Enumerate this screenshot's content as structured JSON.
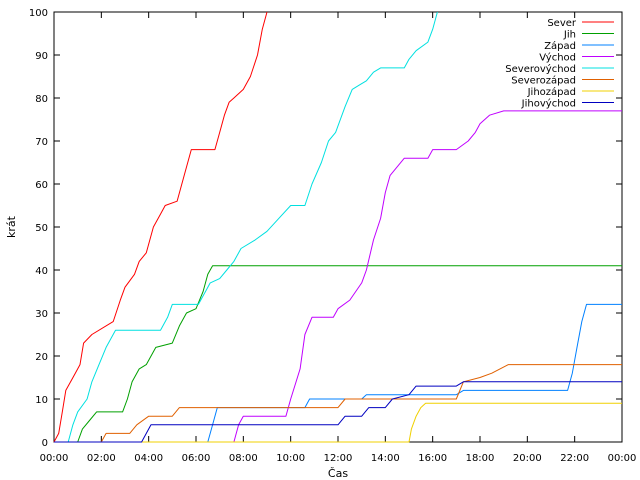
{
  "chart_data": {
    "type": "line",
    "title": "",
    "xlabel": "Čas",
    "ylabel": "krát",
    "x_ticks": [
      "00:00",
      "02:00",
      "04:00",
      "06:00",
      "08:00",
      "10:00",
      "12:00",
      "14:00",
      "16:00",
      "18:00",
      "20:00",
      "22:00",
      "00:00"
    ],
    "x_range_hours": [
      0,
      24
    ],
    "ylim": [
      0,
      100
    ],
    "y_ticks": [
      0,
      10,
      20,
      30,
      40,
      50,
      60,
      70,
      80,
      90,
      100
    ],
    "grid": false,
    "legend_position": "top-right",
    "series": [
      {
        "name": "Sever",
        "color": "#ff0000",
        "points": [
          [
            0.0,
            0
          ],
          [
            0.2,
            2
          ],
          [
            0.35,
            7
          ],
          [
            0.5,
            12
          ],
          [
            0.7,
            14
          ],
          [
            0.9,
            16
          ],
          [
            1.1,
            18
          ],
          [
            1.25,
            23
          ],
          [
            1.6,
            25
          ],
          [
            2.5,
            28
          ],
          [
            2.8,
            33
          ],
          [
            3.0,
            36
          ],
          [
            3.4,
            39
          ],
          [
            3.6,
            42
          ],
          [
            3.9,
            44
          ],
          [
            4.2,
            50
          ],
          [
            4.5,
            53
          ],
          [
            4.7,
            55
          ],
          [
            5.2,
            56
          ],
          [
            5.5,
            62
          ],
          [
            5.8,
            68
          ],
          [
            6.8,
            68
          ],
          [
            7.0,
            72
          ],
          [
            7.2,
            76
          ],
          [
            7.4,
            79
          ],
          [
            7.6,
            80
          ],
          [
            8.0,
            82
          ],
          [
            8.3,
            85
          ],
          [
            8.6,
            90
          ],
          [
            8.8,
            96
          ],
          [
            9.0,
            100
          ]
        ]
      },
      {
        "name": "Jih",
        "color": "#00a000",
        "points": [
          [
            0.0,
            0
          ],
          [
            1.0,
            0
          ],
          [
            1.2,
            3
          ],
          [
            1.5,
            5
          ],
          [
            1.8,
            7
          ],
          [
            2.9,
            7
          ],
          [
            3.1,
            10
          ],
          [
            3.3,
            14
          ],
          [
            3.6,
            17
          ],
          [
            3.9,
            18
          ],
          [
            4.3,
            22
          ],
          [
            5.0,
            23
          ],
          [
            5.3,
            27
          ],
          [
            5.6,
            30
          ],
          [
            6.0,
            31
          ],
          [
            6.3,
            35
          ],
          [
            6.5,
            39
          ],
          [
            6.7,
            41
          ],
          [
            24.0,
            41
          ]
        ]
      },
      {
        "name": "Západ",
        "color": "#0080ff",
        "points": [
          [
            0.0,
            0
          ],
          [
            6.5,
            0
          ],
          [
            6.7,
            4
          ],
          [
            6.9,
            8
          ],
          [
            10.6,
            8
          ],
          [
            10.8,
            10
          ],
          [
            13.0,
            10
          ],
          [
            13.2,
            11
          ],
          [
            17.0,
            11
          ],
          [
            17.3,
            12
          ],
          [
            21.7,
            12
          ],
          [
            21.9,
            16
          ],
          [
            22.1,
            22
          ],
          [
            22.3,
            28
          ],
          [
            22.5,
            32
          ],
          [
            24.0,
            32
          ]
        ]
      },
      {
        "name": "Východ",
        "color": "#c000ff",
        "points": [
          [
            0.0,
            0
          ],
          [
            7.6,
            0
          ],
          [
            7.8,
            4
          ],
          [
            8.0,
            6
          ],
          [
            9.8,
            6
          ],
          [
            10.0,
            10
          ],
          [
            10.4,
            17
          ],
          [
            10.6,
            25
          ],
          [
            10.9,
            29
          ],
          [
            11.8,
            29
          ],
          [
            12.0,
            31
          ],
          [
            12.5,
            33
          ],
          [
            13.0,
            37
          ],
          [
            13.2,
            40
          ],
          [
            13.5,
            47
          ],
          [
            13.8,
            52
          ],
          [
            14.0,
            58
          ],
          [
            14.2,
            62
          ],
          [
            14.5,
            64
          ],
          [
            14.8,
            66
          ],
          [
            15.8,
            66
          ],
          [
            16.0,
            68
          ],
          [
            17.0,
            68
          ],
          [
            17.5,
            70
          ],
          [
            17.8,
            72
          ],
          [
            18.0,
            74
          ],
          [
            18.4,
            76
          ],
          [
            19.0,
            77
          ],
          [
            24.0,
            77
          ]
        ]
      },
      {
        "name": "Severovýchod",
        "color": "#00e0e0",
        "points": [
          [
            0.0,
            0
          ],
          [
            0.6,
            0
          ],
          [
            0.8,
            4
          ],
          [
            1.0,
            7
          ],
          [
            1.4,
            10
          ],
          [
            1.6,
            14
          ],
          [
            1.9,
            18
          ],
          [
            2.2,
            22
          ],
          [
            2.6,
            26
          ],
          [
            4.5,
            26
          ],
          [
            4.8,
            29
          ],
          [
            5.0,
            32
          ],
          [
            6.1,
            32
          ],
          [
            6.4,
            35
          ],
          [
            6.6,
            37
          ],
          [
            7.0,
            38
          ],
          [
            7.3,
            40
          ],
          [
            7.6,
            42
          ],
          [
            7.9,
            45
          ],
          [
            8.5,
            47
          ],
          [
            9.0,
            49
          ],
          [
            9.5,
            52
          ],
          [
            10.0,
            55
          ],
          [
            10.6,
            55
          ],
          [
            10.9,
            60
          ],
          [
            11.3,
            65
          ],
          [
            11.6,
            70
          ],
          [
            11.9,
            72
          ],
          [
            12.3,
            78
          ],
          [
            12.6,
            82
          ],
          [
            12.9,
            83
          ],
          [
            13.2,
            84
          ],
          [
            13.5,
            86
          ],
          [
            13.8,
            87
          ],
          [
            14.8,
            87
          ],
          [
            15.0,
            89
          ],
          [
            15.3,
            91
          ],
          [
            15.8,
            93
          ],
          [
            16.0,
            96
          ],
          [
            16.2,
            100
          ]
        ]
      },
      {
        "name": "Severozápad",
        "color": "#e06000",
        "points": [
          [
            0.0,
            0
          ],
          [
            2.0,
            0
          ],
          [
            2.2,
            2
          ],
          [
            3.2,
            2
          ],
          [
            3.5,
            4
          ],
          [
            4.0,
            6
          ],
          [
            5.0,
            6
          ],
          [
            5.3,
            8
          ],
          [
            12.0,
            8
          ],
          [
            12.3,
            10
          ],
          [
            17.0,
            10
          ],
          [
            17.3,
            14
          ],
          [
            18.0,
            15
          ],
          [
            18.5,
            16
          ],
          [
            19.2,
            18
          ],
          [
            24.0,
            18
          ]
        ]
      },
      {
        "name": "Jihozápad",
        "color": "#f0d000",
        "points": [
          [
            0.0,
            0
          ],
          [
            15.0,
            0
          ],
          [
            15.1,
            3
          ],
          [
            15.3,
            6
          ],
          [
            15.5,
            8
          ],
          [
            15.7,
            9
          ],
          [
            24.0,
            9
          ]
        ]
      },
      {
        "name": "Jihovýchod",
        "color": "#0000c0",
        "points": [
          [
            0.0,
            0
          ],
          [
            3.7,
            0
          ],
          [
            3.9,
            2
          ],
          [
            4.1,
            4
          ],
          [
            12.0,
            4
          ],
          [
            12.3,
            6
          ],
          [
            13.0,
            6
          ],
          [
            13.3,
            8
          ],
          [
            14.0,
            8
          ],
          [
            14.3,
            10
          ],
          [
            15.0,
            11
          ],
          [
            15.3,
            13
          ],
          [
            17.0,
            13
          ],
          [
            17.3,
            14
          ],
          [
            24.0,
            14
          ]
        ]
      }
    ]
  }
}
